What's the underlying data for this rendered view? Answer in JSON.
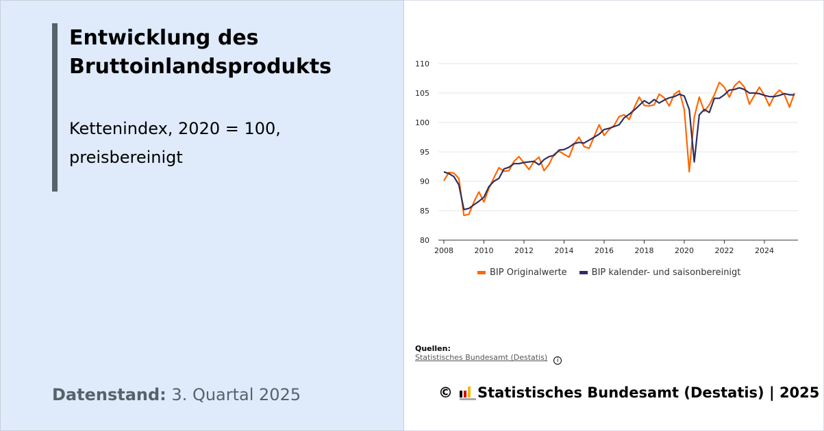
{
  "title": "Entwicklung des Bruttoinlandsprodukts",
  "subtitle": "Kettenindex, 2020 = 100, preisbereinigt",
  "datenstand": {
    "label": "Datenstand:",
    "value": "3. Quartal 2025"
  },
  "sources": {
    "heading": "Quellen:",
    "link": "Statistisches Bundesamt (Destatis)",
    "info_icon": "info-icon"
  },
  "copyright": {
    "symbol": "©",
    "text": "Statistisches Bundesamt (Destatis) | 2025"
  },
  "chart_data": {
    "type": "line",
    "x_start": "2008 Q1",
    "frequency": "quarterly",
    "x_ticks": [
      "2008",
      "2010",
      "2012",
      "2014",
      "2016",
      "2018",
      "2020",
      "2022",
      "2024"
    ],
    "y_ticks": [
      "80",
      "85",
      "90",
      "95",
      "100",
      "105",
      "110"
    ],
    "ylim": [
      80,
      110
    ],
    "grid": "horizontal",
    "legend": "bottom",
    "series": [
      {
        "name": "BIP Originalwerte",
        "color": "#ff6600",
        "values": [
          90.1,
          91.5,
          91.4,
          90.5,
          84.2,
          84.4,
          86.5,
          88.2,
          86.5,
          88.8,
          90.6,
          92.3,
          91.7,
          91.8,
          93.4,
          94.2,
          93.1,
          92.0,
          93.4,
          94.1,
          91.8,
          92.9,
          94.6,
          95.1,
          94.6,
          94.1,
          96.3,
          97.5,
          95.9,
          95.6,
          97.6,
          99.6,
          97.8,
          98.8,
          99.5,
          101.0,
          101.3,
          100.5,
          102.5,
          104.3,
          102.9,
          102.8,
          103.0,
          104.8,
          104.2,
          102.8,
          104.8,
          105.4,
          102.2,
          91.6,
          100.9,
          104.3,
          101.9,
          103.0,
          104.7,
          106.8,
          106.0,
          104.3,
          106.2,
          107.0,
          106.0,
          103.1,
          104.6,
          106.0,
          104.6,
          102.8,
          104.6,
          105.5,
          104.7,
          102.6,
          105.0
        ]
      },
      {
        "name": "BIP kalender- und saisonbereinigt",
        "color": "#2d2e5f",
        "values": [
          91.6,
          91.3,
          90.8,
          89.4,
          85.2,
          85.4,
          86.0,
          86.6,
          87.3,
          89.1,
          90.0,
          90.5,
          92.1,
          92.4,
          93.0,
          93.0,
          93.2,
          93.3,
          93.4,
          92.8,
          93.7,
          94.2,
          94.4,
          95.3,
          95.4,
          95.8,
          96.4,
          96.6,
          96.5,
          97.0,
          97.5,
          98.0,
          98.8,
          99.0,
          99.3,
          99.6,
          100.8,
          101.4,
          102.1,
          102.9,
          103.7,
          103.2,
          103.9,
          103.3,
          103.8,
          104.2,
          104.4,
          104.8,
          104.5,
          102.2,
          93.3,
          101.3,
          102.2,
          101.7,
          104.1,
          104.1,
          104.7,
          105.5,
          105.6,
          105.9,
          105.6,
          105.0,
          105.0,
          104.9,
          104.6,
          104.4,
          104.4,
          104.6,
          104.9,
          104.7,
          104.7
        ]
      }
    ]
  }
}
